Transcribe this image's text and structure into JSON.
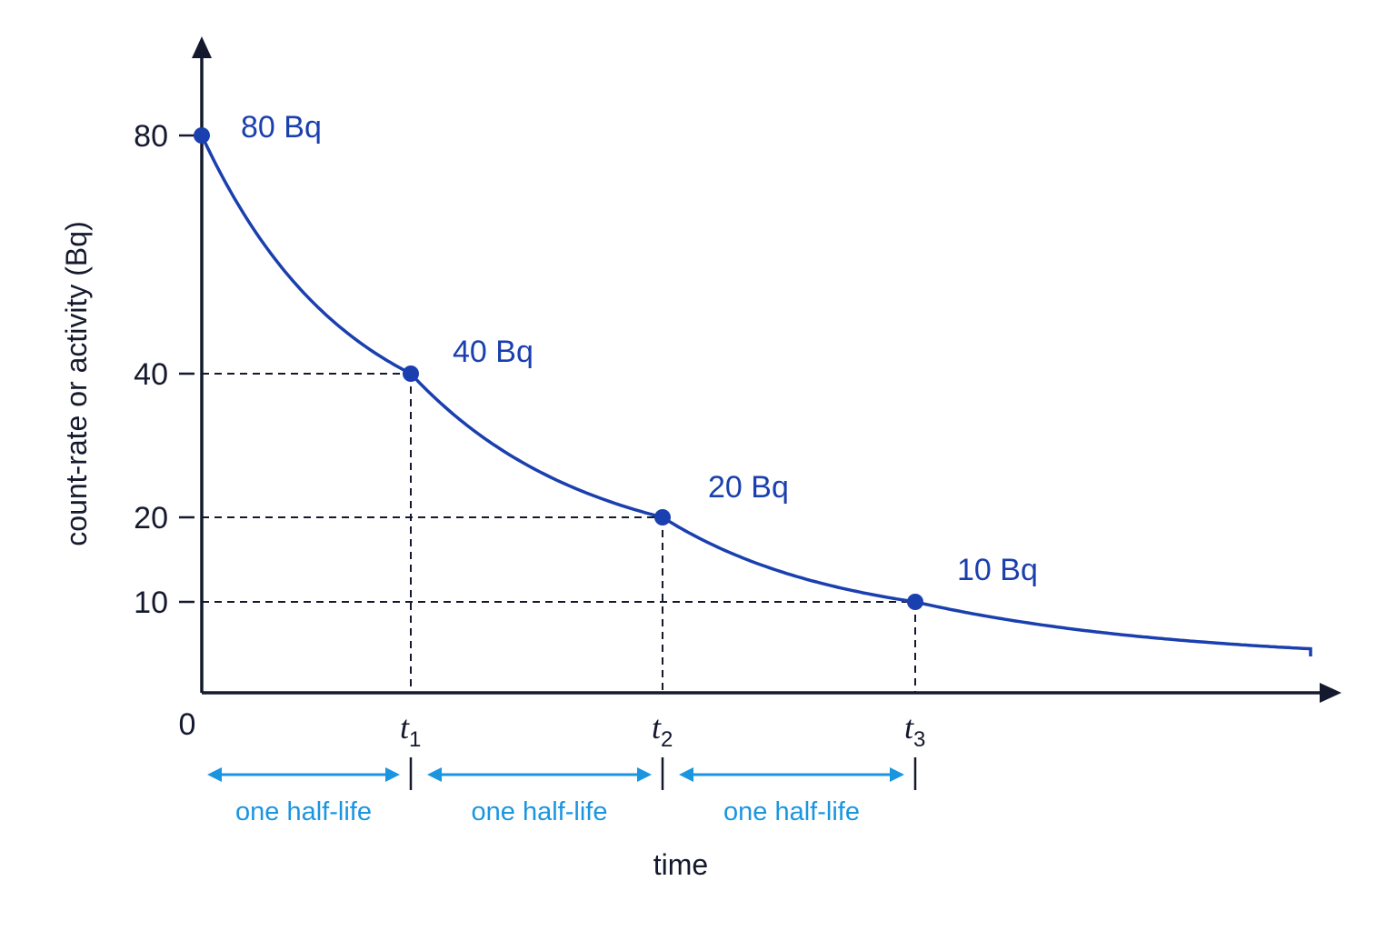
{
  "chart_data": {
    "type": "line",
    "xlabel": "time",
    "ylabel": "count-rate or activity (Bq)",
    "origin_label": "0",
    "y_ticks": [
      80,
      40,
      20,
      10
    ],
    "x_ticks": [
      {
        "base": "t",
        "sub": "1"
      },
      {
        "base": "t",
        "sub": "2"
      },
      {
        "base": "t",
        "sub": "3"
      }
    ],
    "points": [
      {
        "x": 0,
        "y": 80,
        "label": "80 Bq"
      },
      {
        "x": 1,
        "y": 40,
        "label": "40 Bq"
      },
      {
        "x": 2,
        "y": 20,
        "label": "20 Bq"
      },
      {
        "x": 3,
        "y": 10,
        "label": "10 Bq"
      }
    ],
    "spans": [
      "one half-life",
      "one half-life",
      "one half-life"
    ],
    "colors": {
      "curve": "#1a3fae",
      "spans": "#1a95e0",
      "axes": "#14192e"
    },
    "grid": false
  }
}
